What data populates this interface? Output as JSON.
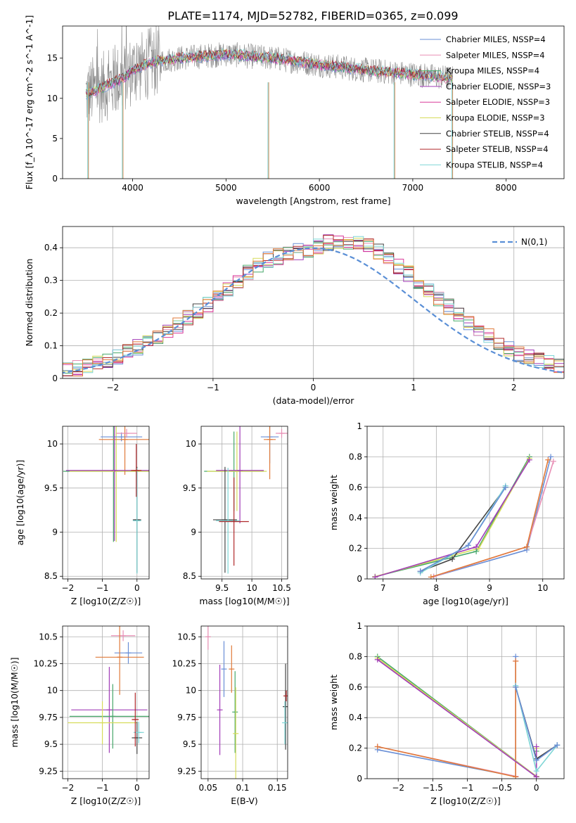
{
  "title": "PLATE=1174, MJD=52782, FIBERID=0365, z=0.099",
  "colors": [
    "#6a8fd6",
    "#e88fb5",
    "#47a86a",
    "#a23db8",
    "#d93a9a",
    "#d6dc5a",
    "#444444",
    "#b0282a",
    "#7fd6d6"
  ],
  "chart_data": [
    {
      "id": "spectrum",
      "type": "line",
      "xlabel": "wavelength [Angstrom, rest frame]",
      "ylabel": "Flux [f_λ 10^-17 erg cm^-2 s^-1 A^-1]",
      "xlim": [
        3250,
        8620
      ],
      "ylim": [
        0,
        19
      ],
      "xticks": [
        4000,
        5000,
        6000,
        7000,
        8000
      ],
      "yticks": [
        0,
        5,
        10,
        15
      ],
      "grid": false,
      "legend_position": "top-right",
      "series": [
        {
          "name": "Chabrier MILES, N_SSP=4",
          "color": "#6a8fd6"
        },
        {
          "name": "Salpeter MILES, N_SSP=4",
          "color": "#e88fb5"
        },
        {
          "name": "Kroupa MILES, N_SSP=4",
          "color": "#47a86a"
        },
        {
          "name": "Chabrier ELODIE, N_SSP=3",
          "color": "#a23db8"
        },
        {
          "name": "Salpeter ELODIE, N_SSP=3",
          "color": "#d93a9a"
        },
        {
          "name": "Kroupa ELODIE, N_SSP=3",
          "color": "#d6dc5a"
        },
        {
          "name": "Chabrier STELIB, N_SSP=4",
          "color": "#444444"
        },
        {
          "name": "Salpeter STELIB, N_SSP=4",
          "color": "#b0282a"
        },
        {
          "name": "Kroupa STELIB, N_SSP=4",
          "color": "#7fd6d6"
        }
      ],
      "continuum": [
        [
          3500,
          10.5
        ],
        [
          3700,
          11.5
        ],
        [
          3900,
          12.5
        ],
        [
          4000,
          13.5
        ],
        [
          4200,
          14.5
        ],
        [
          4500,
          15.0
        ],
        [
          5000,
          15.5
        ],
        [
          5500,
          15.0
        ],
        [
          6000,
          14.2
        ],
        [
          6500,
          13.5
        ],
        [
          7000,
          13.0
        ],
        [
          7400,
          12.5
        ]
      ],
      "data_dips": [
        [
          3520,
          0
        ],
        [
          3890,
          0
        ],
        [
          5450,
          0
        ],
        [
          6800,
          0
        ],
        [
          7420,
          0
        ]
      ]
    },
    {
      "id": "residual-histogram",
      "type": "line",
      "xlabel": "(data-model)/error",
      "ylabel": "Normed distribution",
      "xlim": [
        -2.5,
        2.5
      ],
      "ylim": [
        0,
        0.465
      ],
      "xticks": [
        -2,
        -1,
        0,
        1,
        2
      ],
      "yticks": [
        0.0,
        0.1,
        0.2,
        0.3,
        0.4
      ],
      "grid": true,
      "legend": "N(0,1)",
      "legend_position": "top-right",
      "bin_width": 0.1,
      "hist_envelope": [
        [
          -2.5,
          0.02
        ],
        [
          -2.0,
          0.06
        ],
        [
          -1.5,
          0.13
        ],
        [
          -1.0,
          0.24
        ],
        [
          -0.5,
          0.36
        ],
        [
          0.0,
          0.4
        ],
        [
          0.2,
          0.42
        ],
        [
          0.5,
          0.42
        ],
        [
          1.0,
          0.31
        ],
        [
          1.5,
          0.18
        ],
        [
          2.0,
          0.08
        ],
        [
          2.5,
          0.03
        ]
      ]
    },
    {
      "id": "age-vs-Z",
      "type": "scatter",
      "xlabel": "Z [log10(Z/Z☉)]",
      "ylabel": "age  [log10(age/yr)]",
      "xlim": [
        -2.15,
        0.35
      ],
      "ylim": [
        8.47,
        10.2
      ],
      "xticks": [
        -2,
        -1,
        0
      ],
      "yticks": [
        8.5,
        9.0,
        9.5,
        10.0
      ],
      "grid": true,
      "points": [
        {
          "x": -0.68,
          "y": 9.69,
          "xerr": 1.45,
          "yerr": 0.8,
          "color": "#47a86a"
        },
        {
          "x": -0.6,
          "y": 9.69,
          "xerr": 1.35,
          "yerr": 0.8,
          "color": "#d6dc5a"
        },
        {
          "x": -0.45,
          "y": 10.08,
          "xerr": 0.6,
          "yerr": 0.05,
          "color": "#6a8fd6"
        },
        {
          "x": -0.35,
          "y": 10.05,
          "xerr": 0.75,
          "yerr": 0.4,
          "color": "#e07a3a"
        },
        {
          "x": -0.3,
          "y": 10.12,
          "xerr": 0.3,
          "yerr": 0.05,
          "color": "#e88fb5"
        },
        {
          "x": -0.65,
          "y": 9.7,
          "xerr": 1.4,
          "yerr": 0.8,
          "color": "#a23db8"
        },
        {
          "x": 0.0,
          "y": 9.14,
          "xerr": 0.12,
          "yerr": 0.6,
          "color": "#444444"
        },
        {
          "x": 0.0,
          "y": 9.13,
          "xerr": 0.12,
          "yerr": 0.6,
          "color": "#7fd6d6"
        },
        {
          "x": -0.02,
          "y": 9.7,
          "xerr": 0.15,
          "yerr": 0.3,
          "color": "#b0282a"
        }
      ]
    },
    {
      "id": "age-vs-mass",
      "type": "scatter",
      "xlabel": "mass [log10(M/M☉)]",
      "ylabel": "",
      "xlim": [
        9.15,
        10.6
      ],
      "ylim": [
        8.47,
        10.2
      ],
      "xticks": [
        9.5,
        10.0,
        10.5
      ],
      "yticks": [
        8.5,
        9.0,
        9.5,
        10.0
      ],
      "grid": true,
      "points": [
        {
          "x": 9.7,
          "y": 9.69,
          "xerr": 0.5,
          "yerr": 0.45,
          "color": "#47a86a"
        },
        {
          "x": 9.75,
          "y": 9.69,
          "xerr": 0.5,
          "yerr": 0.45,
          "color": "#d6dc5a"
        },
        {
          "x": 9.8,
          "y": 9.7,
          "xerr": 0.4,
          "yerr": 0.6,
          "color": "#a23db8"
        },
        {
          "x": 9.55,
          "y": 9.14,
          "xerr": 0.2,
          "yerr": 0.6,
          "color": "#444444"
        },
        {
          "x": 9.6,
          "y": 9.13,
          "xerr": 0.2,
          "yerr": 0.6,
          "color": "#7fd6d6"
        },
        {
          "x": 9.7,
          "y": 9.12,
          "xerr": 0.25,
          "yerr": 0.5,
          "color": "#b0282a"
        },
        {
          "x": 10.3,
          "y": 10.08,
          "xerr": 0.15,
          "yerr": 0.3,
          "color": "#6a8fd6"
        },
        {
          "x": 10.3,
          "y": 10.05,
          "xerr": 0.1,
          "yerr": 0.45,
          "color": "#e07a3a"
        },
        {
          "x": 10.5,
          "y": 10.12,
          "xerr": 0.1,
          "yerr": 0.05,
          "color": "#e88fb5"
        }
      ]
    },
    {
      "id": "mass-weight-vs-age",
      "type": "line",
      "xlabel": "age  [log10(age/yr)]",
      "ylabel": "mass weight",
      "xlim": [
        6.7,
        10.4
      ],
      "ylim": [
        0,
        1.0
      ],
      "xticks": [
        7,
        8,
        9,
        10
      ],
      "yticks": [
        0.0,
        0.2,
        0.4,
        0.6,
        0.8,
        1.0
      ],
      "grid": true,
      "series": [
        {
          "color": "#6a8fd6",
          "points": [
            [
              7.95,
              0.015
            ],
            [
              9.7,
              0.19
            ],
            [
              10.15,
              0.8
            ]
          ]
        },
        {
          "color": "#e88fb5",
          "points": [
            [
              7.95,
              0.015
            ],
            [
              9.7,
              0.21
            ],
            [
              10.2,
              0.77
            ]
          ]
        },
        {
          "color": "#e07a3a",
          "points": [
            [
              7.9,
              0.012
            ],
            [
              9.7,
              0.21
            ],
            [
              10.1,
              0.78
            ]
          ]
        },
        {
          "color": "#47a86a",
          "points": [
            [
              6.85,
              0.015
            ],
            [
              8.75,
              0.18
            ],
            [
              9.75,
              0.8
            ]
          ]
        },
        {
          "color": "#d6dc5a",
          "points": [
            [
              6.85,
              0.015
            ],
            [
              8.8,
              0.2
            ],
            [
              9.75,
              0.79
            ]
          ]
        },
        {
          "color": "#a23db8",
          "points": [
            [
              6.85,
              0.012
            ],
            [
              8.75,
              0.21
            ],
            [
              9.75,
              0.78
            ]
          ]
        },
        {
          "color": "#444444",
          "points": [
            [
              7.7,
              0.05
            ],
            [
              8.3,
              0.13
            ],
            [
              9.3,
              0.6
            ]
          ]
        },
        {
          "color": "#7fd6d6",
          "points": [
            [
              7.7,
              0.04
            ],
            [
              8.6,
              0.22
            ],
            [
              9.3,
              0.61
            ]
          ]
        },
        {
          "color": "#6a8fd6",
          "points": [
            [
              7.7,
              0.05
            ],
            [
              8.6,
              0.22
            ],
            [
              9.3,
              0.6
            ]
          ]
        }
      ]
    },
    {
      "id": "mass-vs-Z",
      "type": "scatter",
      "xlabel": "Z [log10(Z/Z☉)]",
      "ylabel": "mass [log10(M/M☉)]",
      "xlim": [
        -2.15,
        0.35
      ],
      "ylim": [
        9.18,
        10.6
      ],
      "xticks": [
        -2,
        -1,
        0
      ],
      "yticks": [
        9.25,
        9.5,
        9.75,
        10.0,
        10.25,
        10.5
      ],
      "grid": true,
      "points": [
        {
          "x": -0.4,
          "y": 10.51,
          "xerr": 0.35,
          "yerr": 0.05,
          "color": "#e88fb5"
        },
        {
          "x": -0.25,
          "y": 10.35,
          "xerr": 0.4,
          "yerr": 0.1,
          "color": "#6a8fd6"
        },
        {
          "x": -0.5,
          "y": 10.31,
          "xerr": 0.7,
          "yerr": 0.35,
          "color": "#e07a3a"
        },
        {
          "x": -0.8,
          "y": 9.82,
          "xerr": 1.1,
          "yerr": 0.4,
          "color": "#a23db8"
        },
        {
          "x": -0.7,
          "y": 9.76,
          "xerr": 1.25,
          "yerr": 0.3,
          "color": "#47a86a"
        },
        {
          "x": -1.0,
          "y": 9.7,
          "xerr": 1.0,
          "yerr": 0.2,
          "color": "#d6dc5a"
        },
        {
          "x": 0.0,
          "y": 9.56,
          "xerr": 0.15,
          "yerr": 0.15,
          "color": "#444444"
        },
        {
          "x": 0.05,
          "y": 9.61,
          "xerr": 0.15,
          "yerr": 0.1,
          "color": "#7fd6d6"
        },
        {
          "x": -0.05,
          "y": 9.73,
          "xerr": 0.1,
          "yerr": 0.25,
          "color": "#b0282a"
        }
      ]
    },
    {
      "id": "mass-vs-EBV",
      "type": "scatter",
      "xlabel": "E(B-V)",
      "ylabel": "",
      "xlim": [
        0.04,
        0.165
      ],
      "ylim": [
        9.18,
        10.6
      ],
      "xticks": [
        0.05,
        0.1,
        0.15
      ],
      "yticks": [
        9.25,
        9.5,
        9.75,
        10.0,
        10.25,
        10.5
      ],
      "grid": true,
      "points": [
        {
          "x": 0.05,
          "y": 10.5,
          "yerr": 0.12,
          "color": "#e88fb5"
        },
        {
          "x": 0.073,
          "y": 10.2,
          "yerr": 0.26,
          "color": "#6a8fd6"
        },
        {
          "x": 0.084,
          "y": 10.2,
          "yerr": 0.22,
          "color": "#e07a3a"
        },
        {
          "x": 0.067,
          "y": 9.82,
          "yerr": 0.42,
          "color": "#a23db8"
        },
        {
          "x": 0.089,
          "y": 9.8,
          "yerr": 0.38,
          "color": "#47a86a"
        },
        {
          "x": 0.09,
          "y": 9.6,
          "yerr": 0.43,
          "color": "#d6dc5a"
        },
        {
          "x": 0.162,
          "y": 9.85,
          "yerr": 0.4,
          "color": "#444444"
        },
        {
          "x": 0.161,
          "y": 9.7,
          "yerr": 0.2,
          "color": "#7fd6d6"
        },
        {
          "x": 0.163,
          "y": 9.95,
          "yerr": 0.05,
          "color": "#b0282a"
        }
      ]
    },
    {
      "id": "mass-weight-vs-Z",
      "type": "line",
      "xlabel": "Z [log10(Z/Z☉)]",
      "ylabel": "mass weight",
      "xlim": [
        -2.45,
        0.4
      ],
      "ylim": [
        0,
        1.0
      ],
      "xticks": [
        -2.0,
        -1.5,
        -1.0,
        -0.5,
        0.0
      ],
      "yticks": [
        0.0,
        0.2,
        0.4,
        0.6,
        0.8,
        1.0
      ],
      "grid": true,
      "series": [
        {
          "color": "#6a8fd6",
          "points": [
            [
              -2.3,
              0.19
            ],
            [
              -0.3,
              0.015
            ],
            [
              -0.3,
              0.8
            ]
          ]
        },
        {
          "color": "#e88fb5",
          "points": [
            [
              -2.3,
              0.21
            ],
            [
              -0.3,
              0.015
            ],
            [
              -0.3,
              0.77
            ]
          ]
        },
        {
          "color": "#e07a3a",
          "points": [
            [
              -2.3,
              0.21
            ],
            [
              -0.3,
              0.012
            ],
            [
              -0.3,
              0.77
            ]
          ]
        },
        {
          "color": "#47a86a",
          "points": [
            [
              -2.3,
              0.8
            ],
            [
              0.0,
              0.015
            ],
            [
              0.0,
              0.18
            ]
          ]
        },
        {
          "color": "#d6dc5a",
          "points": [
            [
              -2.3,
              0.79
            ],
            [
              0.0,
              0.015
            ],
            [
              0.0,
              0.2
            ]
          ]
        },
        {
          "color": "#a23db8",
          "points": [
            [
              -2.3,
              0.78
            ],
            [
              0.0,
              0.012
            ],
            [
              0.0,
              0.21
            ]
          ]
        },
        {
          "color": "#444444",
          "points": [
            [
              -0.3,
              0.6
            ],
            [
              0.0,
              0.13
            ],
            [
              0.3,
              0.22
            ]
          ]
        },
        {
          "color": "#7fd6d6",
          "points": [
            [
              -0.3,
              0.61
            ],
            [
              0.0,
              0.05
            ],
            [
              0.3,
              0.22
            ]
          ]
        },
        {
          "color": "#6a8fd6",
          "points": [
            [
              -0.3,
              0.6
            ],
            [
              0.0,
              0.12
            ],
            [
              0.3,
              0.22
            ]
          ]
        }
      ]
    }
  ]
}
